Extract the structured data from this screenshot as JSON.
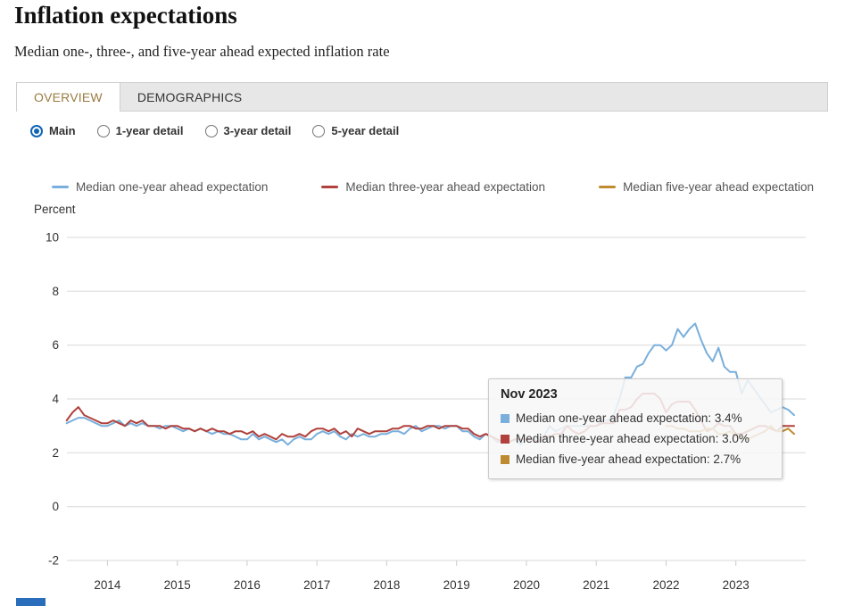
{
  "page": {
    "title": "Inflation expectations",
    "subtitle": "Median one-, three-, and five-year ahead expected inflation rate"
  },
  "tabs": [
    {
      "label": "OVERVIEW",
      "active": true
    },
    {
      "label": "DEMOGRAPHICS",
      "active": false
    }
  ],
  "view_options": [
    {
      "label": "Main",
      "selected": true
    },
    {
      "label": "1-year detail",
      "selected": false
    },
    {
      "label": "3-year detail",
      "selected": false
    },
    {
      "label": "5-year detail",
      "selected": false
    }
  ],
  "tooltip": {
    "title": "Nov 2023",
    "rows": [
      {
        "series": "Median one-year ahead expectation",
        "value": "3.4%",
        "text": "Median one-year ahead expectation: 3.4%",
        "color": "#79AFDC"
      },
      {
        "series": "Median three-year ahead expectation",
        "value": "3.0%",
        "text": "Median three-year ahead expectation: 3.0%",
        "color": "#B0413C"
      },
      {
        "series": "Median five-year ahead expectation",
        "value": "2.7%",
        "text": "Median five-year ahead expectation: 2.7%",
        "color": "#BF8B30"
      }
    ]
  },
  "chart_data": {
    "type": "line",
    "title": "Inflation expectations",
    "subtitle": "Median one-, three-, and five-year ahead expected inflation rate",
    "xlabel": "",
    "ylabel": "Percent",
    "ylim": [
      -2,
      10
    ],
    "xlim": [
      2013.42,
      2024.0
    ],
    "yticks": [
      10,
      8,
      6,
      4,
      2,
      0,
      -2
    ],
    "xticks": [
      2014,
      2015,
      2016,
      2017,
      2018,
      2019,
      2020,
      2021,
      2022,
      2023
    ],
    "grid": "horizontal",
    "legend_position": "top",
    "hover_point": "Nov 2023",
    "series": [
      {
        "id": "one-year",
        "name": "Median one-year ahead expectation",
        "color": "#79AFDC",
        "x_start": 2013.4167,
        "cadence": "monthly",
        "values": [
          3.1,
          3.2,
          3.3,
          3.3,
          3.2,
          3.1,
          3.0,
          3.0,
          3.1,
          3.2,
          3.0,
          3.1,
          3.0,
          3.1,
          3.0,
          3.0,
          2.9,
          3.0,
          3.0,
          2.9,
          2.8,
          2.9,
          2.8,
          2.9,
          2.8,
          2.7,
          2.8,
          2.7,
          2.7,
          2.6,
          2.5,
          2.5,
          2.7,
          2.5,
          2.6,
          2.5,
          2.4,
          2.5,
          2.3,
          2.5,
          2.6,
          2.5,
          2.5,
          2.7,
          2.8,
          2.7,
          2.8,
          2.6,
          2.5,
          2.7,
          2.6,
          2.7,
          2.6,
          2.6,
          2.7,
          2.7,
          2.8,
          2.8,
          2.7,
          2.9,
          3.0,
          2.8,
          2.9,
          3.0,
          3.0,
          2.9,
          3.0,
          3.0,
          2.8,
          2.8,
          2.6,
          2.5,
          2.7,
          2.6,
          2.4,
          2.5,
          2.4,
          2.5,
          2.3,
          2.5,
          2.5,
          2.5,
          2.6,
          3.0,
          2.8,
          2.9,
          3.0,
          3.0,
          3.0,
          3.0,
          3.0,
          3.0,
          3.2,
          3.2,
          3.4,
          4.0,
          4.8,
          4.8,
          5.2,
          5.3,
          5.7,
          6.0,
          6.0,
          5.8,
          6.0,
          6.6,
          6.3,
          6.6,
          6.8,
          6.2,
          5.7,
          5.4,
          5.9,
          5.2,
          5.0,
          5.0,
          4.2,
          4.7,
          4.4,
          4.1,
          3.8,
          3.5,
          3.6,
          3.7,
          3.6,
          3.4
        ]
      },
      {
        "id": "three-year",
        "name": "Median three-year ahead expectation",
        "color": "#B0413C",
        "x_start": 2013.4167,
        "cadence": "monthly",
        "values": [
          3.2,
          3.5,
          3.7,
          3.4,
          3.3,
          3.2,
          3.1,
          3.1,
          3.2,
          3.1,
          3.0,
          3.2,
          3.1,
          3.2,
          3.0,
          3.0,
          3.0,
          2.9,
          3.0,
          3.0,
          2.9,
          2.9,
          2.8,
          2.9,
          2.8,
          2.9,
          2.8,
          2.8,
          2.7,
          2.8,
          2.8,
          2.7,
          2.8,
          2.6,
          2.7,
          2.6,
          2.5,
          2.7,
          2.6,
          2.6,
          2.7,
          2.6,
          2.8,
          2.9,
          2.9,
          2.8,
          2.9,
          2.7,
          2.8,
          2.6,
          2.9,
          2.8,
          2.7,
          2.8,
          2.8,
          2.8,
          2.9,
          2.9,
          3.0,
          3.0,
          2.9,
          2.9,
          3.0,
          3.0,
          2.9,
          3.0,
          3.0,
          3.0,
          2.9,
          2.9,
          2.7,
          2.6,
          2.7,
          2.6,
          2.5,
          2.4,
          2.4,
          2.5,
          2.5,
          2.5,
          2.5,
          2.4,
          2.6,
          2.6,
          2.7,
          2.7,
          3.0,
          2.8,
          2.7,
          2.8,
          3.0,
          3.0,
          3.1,
          3.1,
          3.1,
          3.6,
          3.6,
          3.7,
          4.0,
          4.2,
          4.2,
          4.2,
          4.0,
          3.5,
          3.8,
          3.9,
          3.9,
          3.9,
          3.6,
          3.2,
          2.8,
          2.9,
          3.1,
          3.0,
          3.0,
          2.7,
          2.7,
          2.8,
          2.9,
          3.0,
          3.0,
          2.9,
          2.8,
          3.0,
          3.0,
          3.0
        ]
      },
      {
        "id": "five-year",
        "name": "Median five-year ahead expectation",
        "color": "#BF8B30",
        "x_start": 2022.0,
        "cadence": "monthly",
        "values": [
          3.0,
          3.0,
          2.9,
          2.9,
          2.8,
          2.8,
          2.8,
          2.9,
          2.9,
          2.7,
          2.7,
          2.8,
          2.6,
          2.6,
          2.5,
          2.6,
          2.7,
          2.8,
          3.0,
          2.8,
          2.8,
          2.9,
          2.7
        ]
      }
    ]
  }
}
